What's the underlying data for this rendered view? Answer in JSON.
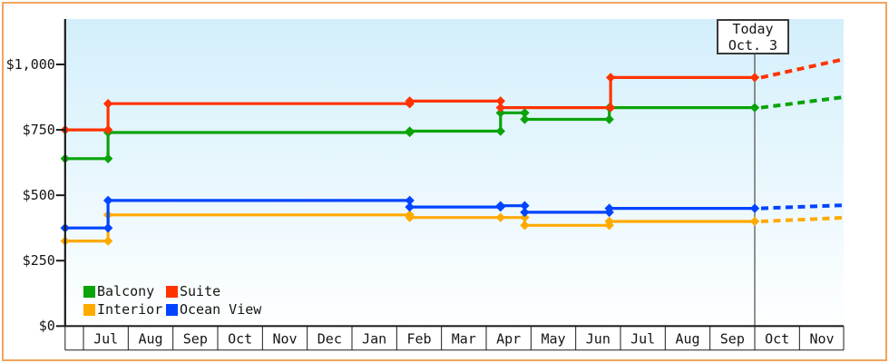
{
  "chart_data": {
    "type": "line",
    "subtype": "step-with-diamond-markers-and-dashed-forecast",
    "title": "",
    "xlabel": "",
    "ylabel": "",
    "ylim": [
      0,
      1175
    ],
    "grid": false,
    "background_gradient": {
      "top": "#d3effb",
      "bottom": "#feffff"
    },
    "frame_color": "#f0a45f",
    "axis_color": "#1b1b1b",
    "y_ticks": [
      {
        "label": "$0",
        "value": 0
      },
      {
        "label": "$250",
        "value": 250
      },
      {
        "label": "$500",
        "value": 500
      },
      {
        "label": "$750",
        "value": 750
      },
      {
        "label": "$1,000",
        "value": 1000
      }
    ],
    "months": [
      "Jul",
      "Aug",
      "Sep",
      "Oct",
      "Nov",
      "Dec",
      "Jan",
      "Feb",
      "Mar",
      "Apr",
      "May",
      "Jun",
      "Jul",
      "Aug",
      "Sep",
      "Oct",
      "Nov"
    ],
    "timeline_start_month": -0.41,
    "projection_end_month": 16.99,
    "today": {
      "label": "Today",
      "date": "Oct. 3",
      "month_pos": 15.0
    },
    "series": [
      {
        "name": "Interior",
        "color": "#ffaa00",
        "events": [
          [
            -0.41,
            325
          ],
          [
            0.55,
            425
          ],
          [
            7.29,
            415
          ],
          [
            9.32,
            415
          ],
          [
            9.86,
            385
          ],
          [
            11.75,
            400
          ]
        ],
        "value_today": 400,
        "projected_value": 414
      },
      {
        "name": "Ocean View",
        "color": "#0044ff",
        "events": [
          [
            -0.41,
            375
          ],
          [
            0.55,
            480
          ],
          [
            7.29,
            455
          ],
          [
            9.32,
            460
          ],
          [
            9.86,
            435
          ],
          [
            11.75,
            450
          ]
        ],
        "value_today": 450,
        "projected_value": 462
      },
      {
        "name": "Balcony",
        "color": "#0aa30a",
        "events": [
          [
            -0.41,
            640
          ],
          [
            0.55,
            740
          ],
          [
            7.29,
            745
          ],
          [
            9.32,
            815
          ],
          [
            9.86,
            790
          ],
          [
            11.75,
            835
          ]
        ],
        "value_today": 835,
        "projected_value": 875
      },
      {
        "name": "Suite",
        "color": "#ff3300",
        "events": [
          [
            -0.41,
            750
          ],
          [
            0.55,
            850
          ],
          [
            7.29,
            860
          ],
          [
            9.32,
            835
          ],
          [
            11.78,
            950
          ]
        ],
        "value_today": 950,
        "projected_value": 1020
      }
    ],
    "legend": [
      {
        "label": "Balcony",
        "color": "#0aa30a"
      },
      {
        "label": "Suite",
        "color": "#ff3300"
      },
      {
        "label": "Interior",
        "color": "#ffaa00"
      },
      {
        "label": "Ocean View",
        "color": "#0044ff"
      }
    ]
  }
}
